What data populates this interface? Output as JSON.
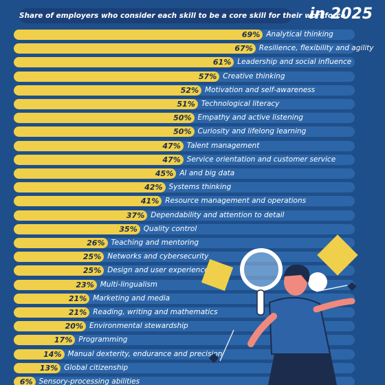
{
  "header": {
    "subtitle": "Share of employers who consider each skill to be a core skill for their workforce",
    "year_title": "in 2025"
  },
  "colors": {
    "background": "#1f4f8a",
    "track": "#2d66a8",
    "bar": "#f0d04a",
    "pill": "#1b3f77"
  },
  "chart_data": {
    "type": "bar",
    "orientation": "horizontal",
    "unit": "%",
    "categories": [
      "Analytical thinking",
      "Resilience, flexibility and agility",
      "Leadership and social influence",
      "Creative thinking",
      "Motivation and self-awareness",
      "Technological literacy",
      "Empathy and active listening",
      "Curiosity and lifelong learning",
      "Talent management",
      "Service orientation and customer service",
      "AI and big data",
      "Systems thinking",
      "Resource management and operations",
      "Dependability and attention to detail",
      "Quality control",
      "Teaching and mentoring",
      "Networks and cybersecurity",
      "Design and user experience",
      "Multi-lingualism",
      "Marketing and media",
      "Reading, writing and mathematics",
      "Environmental stewardship",
      "Programming",
      "Manual dexterity, endurance and precision",
      "Global citizenship",
      "Sensory-processing abilities"
    ],
    "values": [
      69,
      67,
      61,
      57,
      52,
      51,
      50,
      50,
      47,
      47,
      45,
      42,
      41,
      37,
      35,
      26,
      25,
      25,
      23,
      21,
      21,
      20,
      17,
      14,
      13,
      6
    ],
    "value_labels": [
      "69%",
      "67%",
      "61%",
      "57%",
      "52%",
      "51%",
      "50%",
      "50%",
      "47%",
      "47%",
      "45%",
      "42%",
      "41%",
      "37%",
      "35%",
      "26%",
      "25%",
      "25%",
      "23%",
      "21%",
      "21%",
      "20%",
      "17%",
      "14%",
      "13%",
      "6%"
    ],
    "xlim": [
      0,
      100
    ],
    "title": "Share of employers who consider each skill to be a core skill for their workforce"
  }
}
